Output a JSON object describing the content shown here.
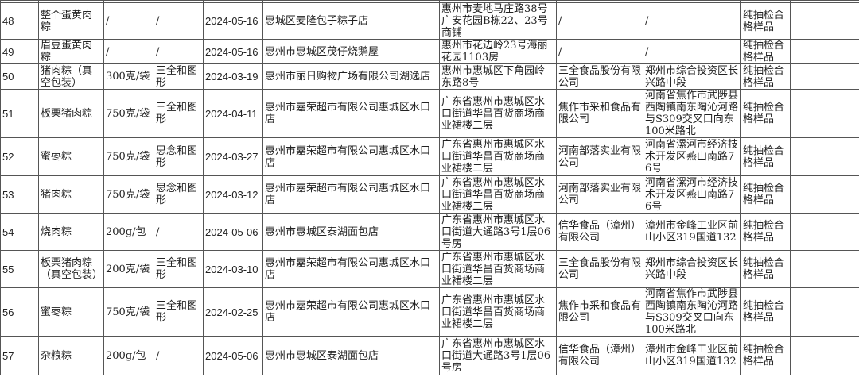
{
  "table": {
    "rows": [
      {
        "no": "48",
        "name": "整个蛋黄肉粽",
        "spec": "/",
        "brand": "/",
        "date": "2024-05-16",
        "seller": "惠城区麦隆包子粽子店",
        "seller_addr": "惠州市麦地马庄路38号广安花园B栋22、23号商铺",
        "maker": "/",
        "maker_addr": "/",
        "result": "纯抽检合格样品",
        "note": ""
      },
      {
        "no": "49",
        "name": "眉豆蛋黄肉粽",
        "spec": "/",
        "brand": "/",
        "date": "2024-05-16",
        "seller": "惠州市惠城区茂仔烧鹅屋",
        "seller_addr": "惠州市花边岭23号海丽花园1103房",
        "maker": "/",
        "maker_addr": "/",
        "result": "纯抽检合格样品",
        "note": ""
      },
      {
        "no": "50",
        "name": "猪肉粽（真空包装）",
        "spec": "300克/袋",
        "brand": "三全和图形",
        "date": "2024-03-19",
        "seller": "惠州市丽日购物广场有限公司湖逸店",
        "seller_addr": "惠州市惠城区下角园岭东路8号",
        "maker": "三全食品股份有限公司",
        "maker_addr": "郑州市综合投资区长兴路中段",
        "result": "纯抽检合格样品",
        "note": ""
      },
      {
        "no": "51",
        "name": "板栗猪肉粽",
        "spec": "750克/袋",
        "brand": "三全和图形",
        "date": "2024-04-11",
        "seller": "惠州市嘉荣超市有限公司惠城区水口店",
        "seller_addr": "广东省惠州市惠城区水口街道华昌百货商场商业裙楼二层",
        "maker": "焦作市采和食品有限公司",
        "maker_addr": "河南省焦作市武陟县西陶镇南东陶沁河路与S309交叉口向东100米路北",
        "result": "纯抽检合格样品",
        "note": ""
      },
      {
        "no": "52",
        "name": "蜜枣粽",
        "spec": "750克/袋",
        "brand": "思念和图形",
        "date": "2024-03-27",
        "seller": "惠州市嘉荣超市有限公司惠城区水口店",
        "seller_addr": "广东省惠州市惠城区水口街道华昌百货商场商业裙楼二层",
        "maker": "河南部落实业有限公司",
        "maker_addr": "河南省漯河市经济技术开发区燕山南路76号",
        "result": "纯抽检合格样品",
        "note": ""
      },
      {
        "no": "53",
        "name": "猪肉粽",
        "spec": "750克/袋",
        "brand": "思念和图形",
        "date": "2024-03-12",
        "seller": "惠州市嘉荣超市有限公司惠城区水口店",
        "seller_addr": "广东省惠州市惠城区水口街道华昌百货商场商业裙楼二层",
        "maker": "河南部落实业有限公司",
        "maker_addr": "河南省漯河市经济技术开发区燕山南路76号",
        "result": "纯抽检合格样品",
        "note": ""
      },
      {
        "no": "54",
        "name": "烧肉粽",
        "spec": "200g/包",
        "brand": "/",
        "date": "2024-05-06",
        "seller": "惠州市惠城区泰湖面包店",
        "seller_addr": "广东省惠州市惠城区水口街道大通路3号1层06号房",
        "maker": "信华食品（漳州）有限公司",
        "maker_addr": "漳州市金峰工业区前山小区319国道132",
        "result": "纯抽检合格样品",
        "note": ""
      },
      {
        "no": "55",
        "name": "板栗猪肉粽（真空包装）",
        "spec": "200克/袋",
        "brand": "三全和图形",
        "date": "2024-03-10",
        "seller": "惠州市嘉荣超市有限公司惠城区水口店",
        "seller_addr": "广东省惠州市惠城区水口街道华昌百货商场商业裙楼二层",
        "maker": "三全食品股份有限公司",
        "maker_addr": "郑州市综合投资区长兴路中段",
        "result": "纯抽检合格样品",
        "note": ""
      },
      {
        "no": "56",
        "name": "蜜枣粽",
        "spec": "750克/袋",
        "brand": "三全和图形",
        "date": "2024-02-25",
        "seller": "惠州市嘉荣超市有限公司惠城区水口店",
        "seller_addr": "广东省惠州市惠城区水口街道华昌百货商场商业裙楼二层",
        "maker": "焦作市采和食品有限公司",
        "maker_addr": "河南省焦作市武陟县西陶镇南东陶沁河路与S309交叉口向东100米路北",
        "result": "纯抽检合格样品",
        "note": ""
      },
      {
        "no": "57",
        "name": "杂粮粽",
        "spec": "200g/包",
        "brand": "/",
        "date": "2024-05-06",
        "seller": "惠州市惠城区泰湖面包店",
        "seller_addr": "广东省惠州市惠城区水口街道大通路3号1层06号房",
        "maker": "信华食品（漳州）有限公司",
        "maker_addr": "漳州市金峰工业区前山小区319国道132",
        "result": "纯抽检合格样品",
        "note": ""
      }
    ]
  }
}
